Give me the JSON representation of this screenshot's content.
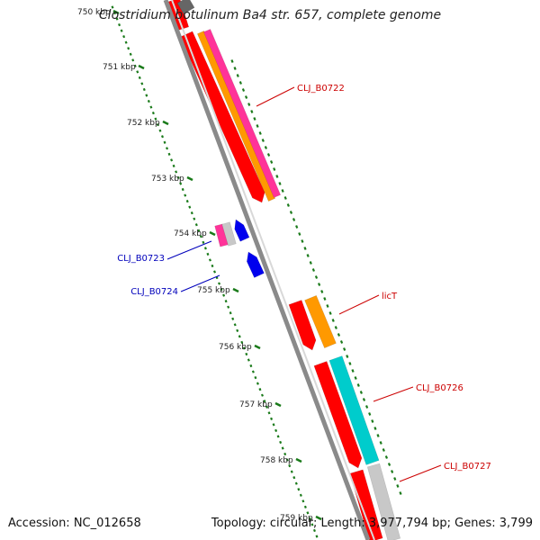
{
  "title": "Clostridium botulinum Ba4 str. 657, complete genome",
  "footer": {
    "accession": "Accession: NC_012658",
    "summary": "Topology: circular; Length: 3,977,794 bp; Genes: 3,799"
  },
  "colors": {
    "backbone": "#8a8a8a",
    "ticks": "#1a7a1a",
    "forward_label": "#cc0000",
    "reverse_label": "#0000bb",
    "red_feature": "#ff0000",
    "orange_feature": "#ff9900",
    "pink_feature": "#ff3399",
    "cyan_feature": "#00cccc",
    "gray_feature": "#c8c8c8",
    "blue_feature": "#0000ee"
  },
  "tick_labels": [
    {
      "text": "750 kbp",
      "major": true
    },
    {
      "text": "751 kbp",
      "major": true
    },
    {
      "text": "752 kbp",
      "major": true
    },
    {
      "text": "753 kbp",
      "major": true
    },
    {
      "text": "754 kbp",
      "major": true
    },
    {
      "text": "755 kbp",
      "major": true
    },
    {
      "text": "756 kbp",
      "major": true
    },
    {
      "text": "757 kbp",
      "major": true
    },
    {
      "text": "758 kbp",
      "major": true
    },
    {
      "text": "759 kbp",
      "major": true
    }
  ],
  "gene_labels": [
    {
      "text": "CLJ_B0722",
      "strand": "forward"
    },
    {
      "text": "CLJ_B0723",
      "strand": "reverse"
    },
    {
      "text": "CLJ_B0724",
      "strand": "reverse"
    },
    {
      "text": "licT",
      "strand": "forward"
    },
    {
      "text": "CLJ_B0726",
      "strand": "forward"
    },
    {
      "text": "CLJ_B0727",
      "strand": "forward"
    }
  ]
}
